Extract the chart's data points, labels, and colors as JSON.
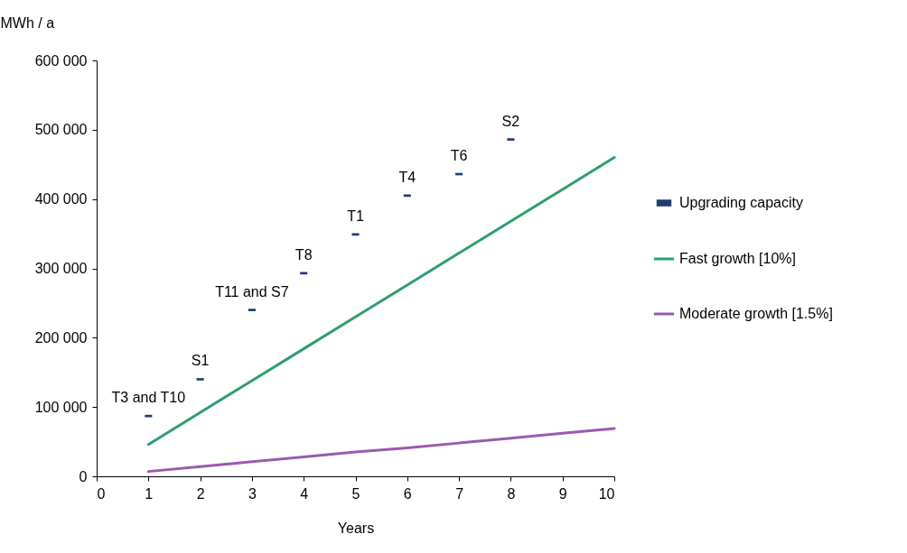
{
  "chart_data": {
    "type": "line",
    "xlabel": "Years",
    "ylabel": "MWh / a",
    "x": [
      1,
      2,
      3,
      4,
      5,
      6,
      7,
      8,
      9,
      10
    ],
    "series": [
      {
        "name": "Upgrading capacity",
        "type": "scatter",
        "color": "#1f3a73",
        "x": [
          1,
          2,
          3,
          4,
          5,
          6,
          7,
          8
        ],
        "values": [
          87000,
          140000,
          240000,
          293000,
          349000,
          405000,
          436000,
          486000
        ]
      },
      {
        "name": "Fast growth [10%]",
        "color": "#2e9e6e",
        "values": [
          46000,
          92000,
          138000,
          184000,
          230000,
          276000,
          322000,
          368000,
          414000,
          460000
        ]
      },
      {
        "name": "Moderate growth [1.5%]",
        "color": "#9b59b0",
        "values": [
          7000,
          14000,
          21000,
          28000,
          35000,
          41000,
          48000,
          55000,
          62000,
          69000
        ]
      }
    ],
    "annotations": [
      {
        "text": "T3 and T10",
        "x": 1,
        "y": 87000
      },
      {
        "text": "S1",
        "x": 2,
        "y": 140000
      },
      {
        "text": "T11 and S7",
        "x": 3,
        "y": 240000
      },
      {
        "text": "T8",
        "x": 4,
        "y": 293000
      },
      {
        "text": "T1",
        "x": 5,
        "y": 349000
      },
      {
        "text": "T4",
        "x": 6,
        "y": 405000
      },
      {
        "text": "T6",
        "x": 7,
        "y": 436000
      },
      {
        "text": "S2",
        "x": 8,
        "y": 486000
      }
    ],
    "xlim": [
      0,
      10
    ],
    "xticks": [
      0,
      1,
      2,
      3,
      4,
      5,
      6,
      7,
      8,
      9,
      10
    ],
    "ylim": [
      0,
      600000
    ],
    "yticks": [
      {
        "value": 0,
        "label": "0"
      },
      {
        "value": 100000,
        "label": "100 000"
      },
      {
        "value": 200000,
        "label": "200 000"
      },
      {
        "value": 300000,
        "label": "300 000"
      },
      {
        "value": 400000,
        "label": "400 000"
      },
      {
        "value": 500000,
        "label": "500 000"
      },
      {
        "value": 600000,
        "label": "600 000"
      }
    ],
    "grid": false,
    "legend": "right"
  }
}
